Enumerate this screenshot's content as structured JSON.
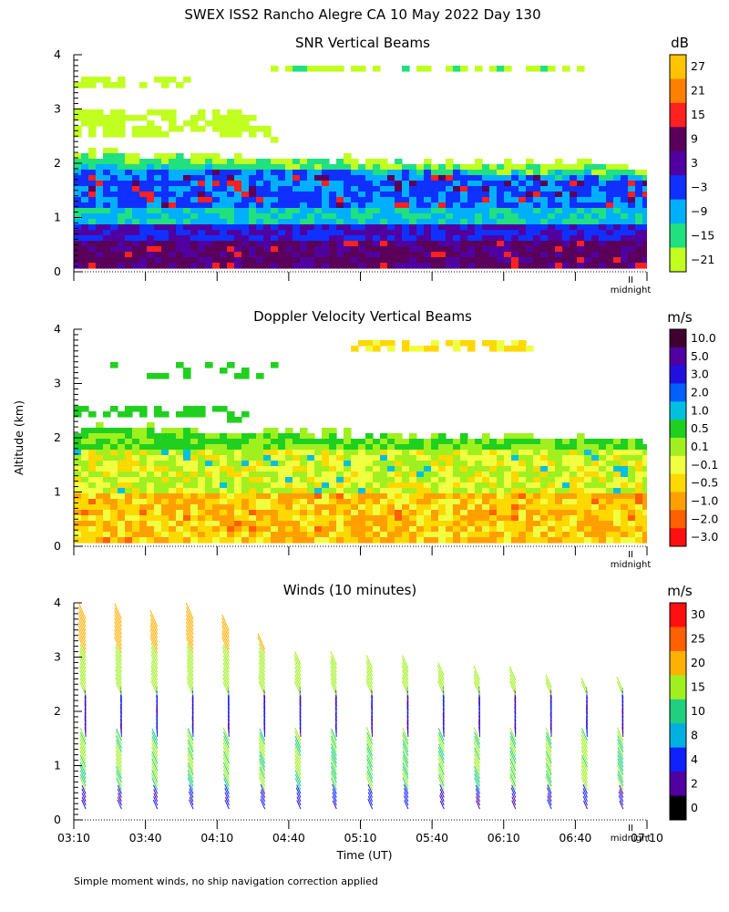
{
  "figure": {
    "title": "SWEX ISS2 Rancho Alegre CA  10 May 2022 Day 130",
    "ylabel": "Altitude (km)",
    "xlabel": "Time (UT)",
    "footnote": "Simple moment winds, no ship navigation correction applied",
    "midnight_label": "midnight",
    "midnight_marker": "II"
  },
  "chart_data": [
    {
      "type": "heatmap",
      "title": "SNR Vertical Beams",
      "ylim": [
        0,
        4
      ],
      "yticks": [
        "0",
        "1",
        "2",
        "3",
        "4"
      ],
      "colorbar": {
        "unit": "dB",
        "labels": [
          "27",
          "21",
          "15",
          "9",
          "3",
          "−3",
          "−9",
          "−15",
          "−21"
        ],
        "colors": [
          "#ffc400",
          "#ff7f00",
          "#ff2020",
          "#5a005a",
          "#5000a0",
          "#1030ff",
          "#00b0ff",
          "#20e080",
          "#c0ff20"
        ]
      },
      "layers": [
        {
          "alt_min": 0.0,
          "alt_max": 0.6,
          "class": "9"
        },
        {
          "alt_min": 0.6,
          "alt_max": 0.9,
          "class": "3"
        },
        {
          "alt_min": 0.9,
          "alt_max": 1.2,
          "class": "-9"
        },
        {
          "alt_min": 1.2,
          "alt_max": 1.8,
          "class": "-3"
        },
        {
          "alt_min": 1.8,
          "alt_max": 2.3,
          "class": "-15"
        },
        {
          "alt_min": 2.3,
          "alt_max": 2.7,
          "class": "-21"
        }
      ]
    },
    {
      "type": "heatmap",
      "title": "Doppler Velocity Vertical Beams",
      "ylim": [
        0,
        4
      ],
      "yticks": [
        "0",
        "1",
        "2",
        "3",
        "4"
      ],
      "colorbar": {
        "unit": "m/s",
        "labels": [
          "10.0",
          "5.0",
          "3.0",
          "2.0",
          "1.0",
          "0.5",
          "0.1",
          "−0.1",
          "−0.5",
          "−1.0",
          "−2.0",
          "−3.0"
        ],
        "colors": [
          "#400030",
          "#5000a0",
          "#2010e0",
          "#0060ff",
          "#00c0e0",
          "#20d020",
          "#a0f020",
          "#f0ff40",
          "#ffd800",
          "#ffa000",
          "#ff6000",
          "#ff1010"
        ]
      },
      "layers": [
        {
          "alt_min": 0.1,
          "alt_max": 1.0,
          "class": "-1.0"
        },
        {
          "alt_min": 1.0,
          "alt_max": 1.9,
          "class": "-0.1"
        },
        {
          "alt_min": 1.9,
          "alt_max": 2.3,
          "class": "0.5"
        }
      ]
    },
    {
      "type": "wind_barbs",
      "title": "Winds (10 minutes)",
      "ylim": [
        0,
        4
      ],
      "yticks": [
        "0",
        "1",
        "2",
        "3",
        "4"
      ],
      "xlim": [
        "03:10",
        "07:10"
      ],
      "xticks": [
        "03:10",
        "03:40",
        "04:10",
        "04:40",
        "05:10",
        "05:40",
        "06:10",
        "06:40",
        "07:10"
      ],
      "colorbar": {
        "unit": "m/s",
        "labels": [
          "30",
          "25",
          "20",
          "15",
          "10",
          "8",
          "4",
          "2",
          "0"
        ],
        "colors": [
          "#ff1010",
          "#ff6000",
          "#ffb000",
          "#a0f020",
          "#20d080",
          "#00b0e0",
          "#1020ff",
          "#5000a0",
          "#000000"
        ]
      },
      "profile_times_min_after_0310": [
        5,
        20,
        35,
        50,
        65,
        80,
        95,
        110,
        125,
        140,
        155,
        170,
        185,
        200,
        215,
        230
      ],
      "profile_alt_max_km": [
        3.7,
        3.7,
        3.6,
        3.7,
        3.5,
        3.2,
        2.9,
        2.9,
        2.8,
        2.8,
        2.7,
        2.6,
        2.6,
        2.5,
        2.4,
        2.4
      ],
      "speed_by_altitude": [
        {
          "alt_min": 0.2,
          "alt_max": 0.5,
          "speed_ms": 4
        },
        {
          "alt_min": 0.5,
          "alt_max": 1.5,
          "speed_ms": 12
        },
        {
          "alt_min": 1.5,
          "alt_max": 2.3,
          "speed_ms": 3
        },
        {
          "alt_min": 2.3,
          "alt_max": 3.0,
          "speed_ms": 14
        },
        {
          "alt_min": 3.0,
          "alt_max": 4.0,
          "speed_ms": 20
        }
      ]
    }
  ]
}
